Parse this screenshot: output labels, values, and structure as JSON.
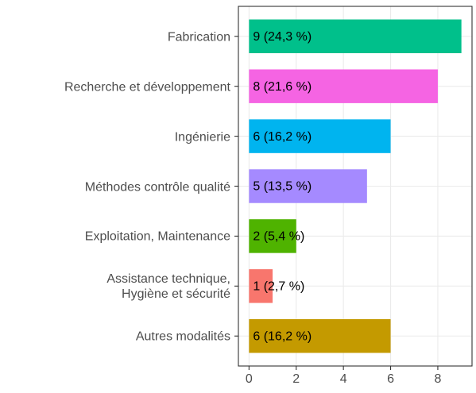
{
  "chart_data": {
    "type": "barh",
    "categories": [
      "Fabrication",
      "Recherche et développement",
      "Ingénierie",
      "Méthodes contrôle qualité",
      "Exploitation, Maintenance",
      "Assistance technique,\nHygiène et sécurité",
      "Autres modalités"
    ],
    "values": [
      9,
      8,
      6,
      5,
      2,
      1,
      6
    ],
    "value_labels": [
      "9 (24,3 %)",
      "8 (21,6 %)",
      "6 (16,2 %)",
      "5 (13,5 %)",
      "2 (5,4 %)",
      "1 (2,7 %)",
      "6 (16,2 %)"
    ],
    "colors": [
      "#00c08b",
      "#f564e3",
      "#00b4ef",
      "#a58aff",
      "#4fb300",
      "#f8766d",
      "#c49a00"
    ],
    "xlim": [
      -0.45,
      9.45
    ],
    "xticks": [
      0,
      2,
      4,
      6,
      8
    ],
    "grid": true
  }
}
